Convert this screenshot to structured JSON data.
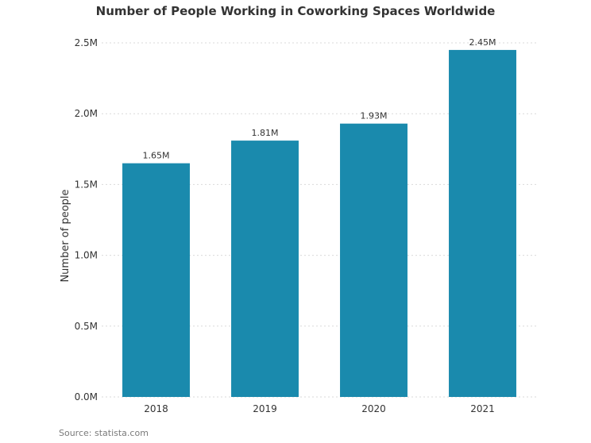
{
  "source_note": "Source: statista.com",
  "colors": {
    "bar": "#1a8aad",
    "grid": "#d9d9d9",
    "text": "#333333"
  },
  "chart_data": {
    "type": "bar",
    "title": "Number of People Working in Coworking Spaces Worldwide",
    "xlabel": "",
    "ylabel": "Number of people",
    "categories": [
      "2018",
      "2019",
      "2020",
      "2021"
    ],
    "values": [
      1650000,
      1810000,
      1930000,
      2450000
    ],
    "value_labels": [
      "1.65M",
      "1.81M",
      "1.93M",
      "2.45M"
    ],
    "ylim": [
      0,
      2500000
    ],
    "yticks": [
      0,
      500000,
      1000000,
      1500000,
      2000000,
      2500000
    ],
    "ytick_labels": [
      "0.0M",
      "0.5M",
      "1.0M",
      "1.5M",
      "2.0M",
      "2.5M"
    ],
    "grid": true,
    "legend": false
  }
}
